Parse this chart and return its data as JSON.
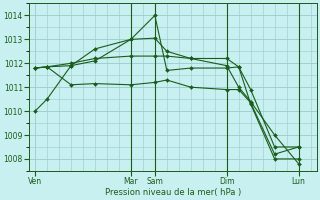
{
  "background_color": "#c8f0f0",
  "grid_color": "#99cccc",
  "line_color": "#1a5c1a",
  "marker_color": "#1a5c1a",
  "xlabel": "Pression niveau de la mer( hPa )",
  "ylim": [
    1007.5,
    1014.5
  ],
  "yticks": [
    1008,
    1009,
    1010,
    1011,
    1012,
    1013,
    1014
  ],
  "xtick_labels": [
    "Ven",
    "Mar",
    "Sam",
    "Dim",
    "Lun"
  ],
  "xtick_positions": [
    0,
    8,
    10,
    16,
    22
  ],
  "vlines": [
    8,
    10,
    16,
    22
  ],
  "xlim": [
    -0.5,
    23.5
  ],
  "lines": [
    {
      "x": [
        0,
        1,
        3,
        5,
        8,
        10,
        11,
        13,
        16,
        17,
        18,
        20,
        22
      ],
      "y": [
        1010.0,
        1010.5,
        1011.9,
        1012.1,
        1013.0,
        1014.0,
        1011.7,
        1011.8,
        1011.8,
        1011.85,
        1010.3,
        1008.0,
        1008.0
      ]
    },
    {
      "x": [
        0,
        1,
        3,
        5,
        8,
        10,
        11,
        13,
        16,
        17,
        18,
        20,
        22
      ],
      "y": [
        1011.8,
        1011.85,
        1011.9,
        1012.6,
        1013.0,
        1013.05,
        1012.5,
        1012.2,
        1012.2,
        1011.85,
        1010.9,
        1008.5,
        1008.5
      ]
    },
    {
      "x": [
        0,
        1,
        3,
        5,
        8,
        10,
        11,
        13,
        16,
        17,
        18,
        20,
        22
      ],
      "y": [
        1011.8,
        1011.85,
        1012.0,
        1012.2,
        1012.3,
        1012.3,
        1012.3,
        1012.2,
        1011.9,
        1011.0,
        1010.4,
        1009.0,
        1007.8
      ]
    },
    {
      "x": [
        0,
        1,
        3,
        5,
        8,
        10,
        11,
        13,
        16,
        17,
        18,
        20,
        22
      ],
      "y": [
        1011.8,
        1011.85,
        1011.1,
        1011.15,
        1011.1,
        1011.2,
        1011.3,
        1011.0,
        1010.9,
        1010.9,
        1010.35,
        1008.2,
        1008.5
      ]
    }
  ]
}
